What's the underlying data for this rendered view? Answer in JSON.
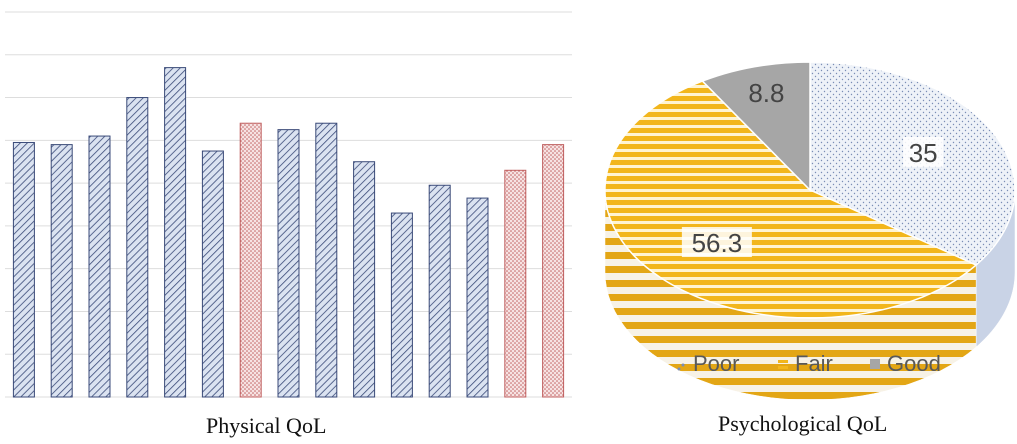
{
  "chart_data": [
    {
      "type": "bar",
      "caption": "Physical QoL",
      "bars": [
        {
          "value": 59.5,
          "group": "blue"
        },
        {
          "value": 59.0,
          "group": "blue"
        },
        {
          "value": 61.0,
          "group": "blue"
        },
        {
          "value": 70.0,
          "group": "blue"
        },
        {
          "value": 77.0,
          "group": "blue"
        },
        {
          "value": 57.5,
          "group": "blue"
        },
        {
          "value": 64.0,
          "group": "red"
        },
        {
          "value": 62.5,
          "group": "blue"
        },
        {
          "value": 64.0,
          "group": "blue"
        },
        {
          "value": 55.0,
          "group": "blue"
        },
        {
          "value": 43.0,
          "group": "blue"
        },
        {
          "value": 49.5,
          "group": "blue"
        },
        {
          "value": 46.5,
          "group": "blue"
        },
        {
          "value": 53.0,
          "group": "red"
        },
        {
          "value": 59.0,
          "group": "red"
        }
      ],
      "ylim": [
        0,
        90
      ],
      "grid_step": 10,
      "grid": true,
      "colors": {
        "blue": "#dbe3f1",
        "blue_hatch": "#3a4a78",
        "red": "#f4d6d6",
        "red_hatch": "#c06060",
        "grid": "#dddddd"
      }
    },
    {
      "type": "pie",
      "caption": "Psychological QoL",
      "slices": [
        {
          "label": "Poor",
          "value": 35,
          "value_text": "35",
          "color": "#dfe6f1"
        },
        {
          "label": "Fair",
          "value": 56.3,
          "value_text": "56.3",
          "color": "#f2b61c"
        },
        {
          "label": "Good",
          "value": 8.8,
          "value_text": "8.8",
          "color": "#a6a6a6"
        }
      ],
      "legend_position": "bottom"
    }
  ]
}
